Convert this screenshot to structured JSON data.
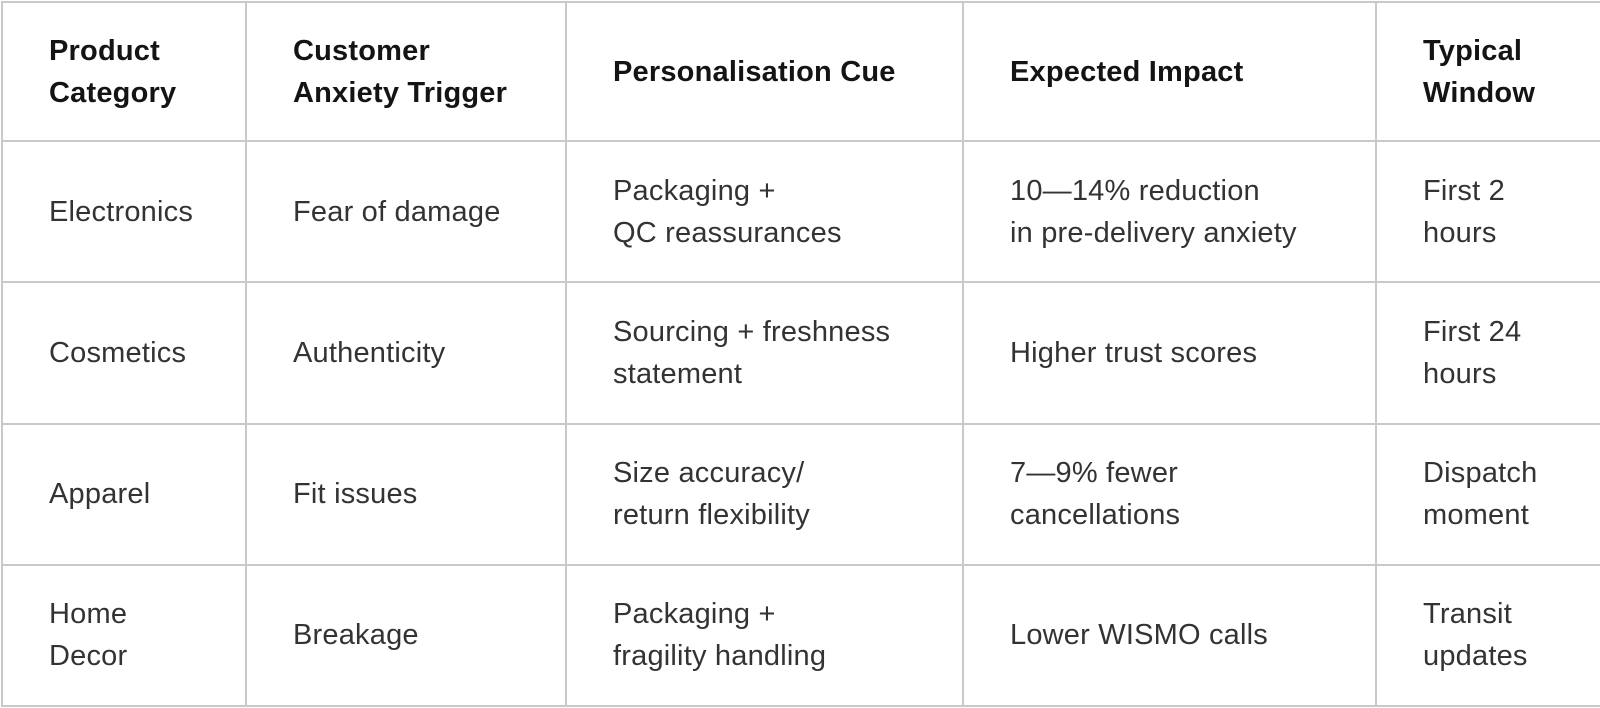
{
  "chart_data": {
    "type": "table",
    "title": "",
    "columns": [
      "Product\nCategory",
      "Customer\nAnxiety Trigger",
      "Personalisation Cue",
      "Expected Impact",
      "Typical\nWindow"
    ],
    "rows": [
      {
        "cells": [
          "Electronics",
          "Fear of damage",
          "Packaging +\nQC reassurances",
          "10—14% reduction\nin pre-delivery anxiety",
          "First 2\nhours"
        ]
      },
      {
        "cells": [
          "Cosmetics",
          "Authenticity",
          "Sourcing + freshness\nstatement",
          "Higher trust scores",
          "First 24\nhours"
        ]
      },
      {
        "cells": [
          "Apparel",
          "Fit issues",
          "Size accuracy/\nreturn flexibility",
          "7—9% fewer\ncancellations",
          "Dispatch\nmoment"
        ]
      },
      {
        "cells": [
          "Home\nDecor",
          "Breakage",
          "Packaging +\nfragility handling",
          "Lower WISMO calls",
          "Transit\nupdates"
        ]
      }
    ],
    "layout": {
      "grid": "on",
      "header_row": true
    }
  },
  "style": {
    "border_color": "#c9c9c9",
    "header_text_color": "#141414",
    "body_text_color": "#333333",
    "background_color": "#ffffff"
  }
}
